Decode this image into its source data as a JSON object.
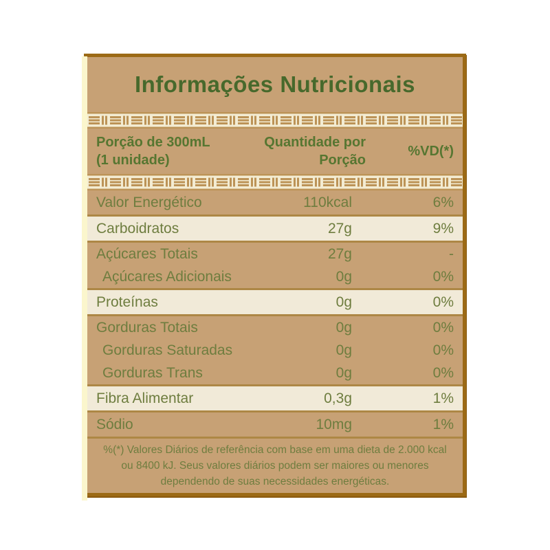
{
  "title": "Informações Nutricionais",
  "header": {
    "portion_line1": "Porção de 300mL",
    "portion_line2": "(1 unidade)",
    "quantity_line1": "Quantidade por",
    "quantity_line2": "Porção",
    "vd_label": "%VD(*)"
  },
  "table": {
    "groups": [
      {
        "tone": "tan",
        "rows": [
          {
            "name": "Valor Energético",
            "value": "110kcal",
            "vd": "6%",
            "indent": false
          }
        ]
      },
      {
        "tone": "cream",
        "rows": [
          {
            "name": "Carboidratos",
            "value": "27g",
            "vd": "9%",
            "indent": false
          }
        ]
      },
      {
        "tone": "tan",
        "rows": [
          {
            "name": "Açúcares Totais",
            "value": "27g",
            "vd": "-",
            "indent": false
          },
          {
            "name": "Açúcares Adicionais",
            "value": "0g",
            "vd": "0%",
            "indent": true
          }
        ]
      },
      {
        "tone": "cream",
        "rows": [
          {
            "name": "Proteínas",
            "value": "0g",
            "vd": "0%",
            "indent": false
          }
        ]
      },
      {
        "tone": "tan",
        "rows": [
          {
            "name": "Gorduras Totais",
            "value": "0g",
            "vd": "0%",
            "indent": false
          },
          {
            "name": "Gorduras Saturadas",
            "value": "0g",
            "vd": "0%",
            "indent": true
          },
          {
            "name": "Gorduras Trans",
            "value": "0g",
            "vd": "0%",
            "indent": true
          }
        ]
      },
      {
        "tone": "cream",
        "rows": [
          {
            "name": "Fibra Alimentar",
            "value": "0,3g",
            "vd": "1%",
            "indent": false
          }
        ]
      },
      {
        "tone": "tan",
        "rows": [
          {
            "name": "Sódio",
            "value": "10mg",
            "vd": "1%",
            "indent": false
          }
        ]
      }
    ]
  },
  "footer": {
    "text": "%(*) Valores Diários de referência com base em uma dieta de 2.000 kcal ou 8400 kJ. Seus valores diários podem ser maiores ou menores dependendo de suas necessidades energéticas."
  },
  "colors": {
    "tan": "#c7a175",
    "cream": "#f1ead8",
    "band_cream": "#f3ecd3",
    "band_tan": "#bc9357",
    "border": "#9c6a16",
    "separator": "#ad8745",
    "title_green": "#47692c",
    "text_green": "#6e7d3f",
    "header_green": "#567631",
    "strip_yellow": "#fbf6cd"
  }
}
